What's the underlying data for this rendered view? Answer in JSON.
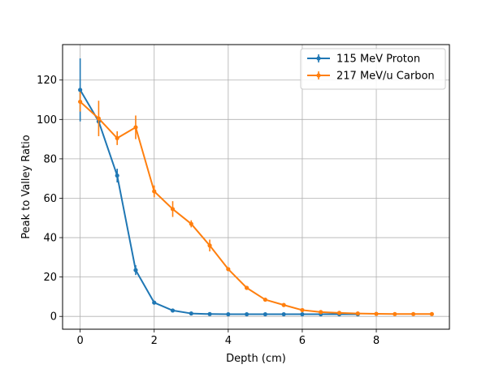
{
  "chart_data": {
    "type": "line",
    "title": "",
    "xlabel": "Depth (cm)",
    "ylabel": "Peak to Valley Ratio",
    "xlim": [
      -0.475,
      9.975
    ],
    "ylim": [
      -6.5,
      138
    ],
    "xticks": [
      0,
      2,
      4,
      6,
      8
    ],
    "yticks": [
      0,
      20,
      40,
      60,
      80,
      100,
      120
    ],
    "xtick_labels": [
      "0",
      "2",
      "4",
      "6",
      "8"
    ],
    "ytick_labels": [
      "0",
      "20",
      "40",
      "60",
      "80",
      "100",
      "120"
    ],
    "grid": true,
    "legend_position": "top-right",
    "series": [
      {
        "name": "115 MeV Proton",
        "color": "#1f77b4",
        "points": [
          {
            "x": 0.0,
            "y": 115,
            "err": 16
          },
          {
            "x": 0.5,
            "y": 99,
            "err": 1.5
          },
          {
            "x": 1.0,
            "y": 71.5,
            "err": 3.5
          },
          {
            "x": 1.5,
            "y": 23.5,
            "err": 2.5
          },
          {
            "x": 2.0,
            "y": 7,
            "err": 0.6
          },
          {
            "x": 2.5,
            "y": 3,
            "err": 0.3
          },
          {
            "x": 3.0,
            "y": 1.5,
            "err": 0.2
          },
          {
            "x": 3.5,
            "y": 1.2,
            "err": 0.1
          },
          {
            "x": 4.0,
            "y": 1.1,
            "err": 0.1
          },
          {
            "x": 4.5,
            "y": 1.1,
            "err": 0.1
          },
          {
            "x": 5.0,
            "y": 1.1,
            "err": 0.1
          },
          {
            "x": 5.5,
            "y": 1.1,
            "err": 0.1
          },
          {
            "x": 6.0,
            "y": 1.1,
            "err": 0.1
          },
          {
            "x": 6.5,
            "y": 1.1,
            "err": 0.1
          },
          {
            "x": 7.0,
            "y": 1.1,
            "err": 0.1
          },
          {
            "x": 7.5,
            "y": 1.1,
            "err": 0.1
          }
        ]
      },
      {
        "name": "217 MeV/u Carbon",
        "color": "#ff7f0e",
        "points": [
          {
            "x": 0.0,
            "y": 109,
            "err": 5
          },
          {
            "x": 0.5,
            "y": 100.5,
            "err": 9
          },
          {
            "x": 1.0,
            "y": 90.5,
            "err": 3.5
          },
          {
            "x": 1.5,
            "y": 96,
            "err": 6
          },
          {
            "x": 2.0,
            "y": 63.5,
            "err": 3
          },
          {
            "x": 2.5,
            "y": 54.5,
            "err": 4
          },
          {
            "x": 3.0,
            "y": 47,
            "err": 1.8
          },
          {
            "x": 3.5,
            "y": 36,
            "err": 3
          },
          {
            "x": 4.0,
            "y": 24,
            "err": 1
          },
          {
            "x": 4.5,
            "y": 14.5,
            "err": 0.8
          },
          {
            "x": 5.0,
            "y": 8.5,
            "err": 0.6
          },
          {
            "x": 5.5,
            "y": 5.8,
            "err": 0.5
          },
          {
            "x": 6.0,
            "y": 3.2,
            "err": 0.4
          },
          {
            "x": 6.5,
            "y": 2.2,
            "err": 0.3
          },
          {
            "x": 7.0,
            "y": 1.8,
            "err": 0.2
          },
          {
            "x": 7.5,
            "y": 1.5,
            "err": 0.2
          },
          {
            "x": 8.0,
            "y": 1.3,
            "err": 0.1
          },
          {
            "x": 8.5,
            "y": 1.2,
            "err": 0.1
          },
          {
            "x": 9.0,
            "y": 1.2,
            "err": 0.1
          },
          {
            "x": 9.5,
            "y": 1.2,
            "err": 0.1
          }
        ]
      }
    ]
  }
}
